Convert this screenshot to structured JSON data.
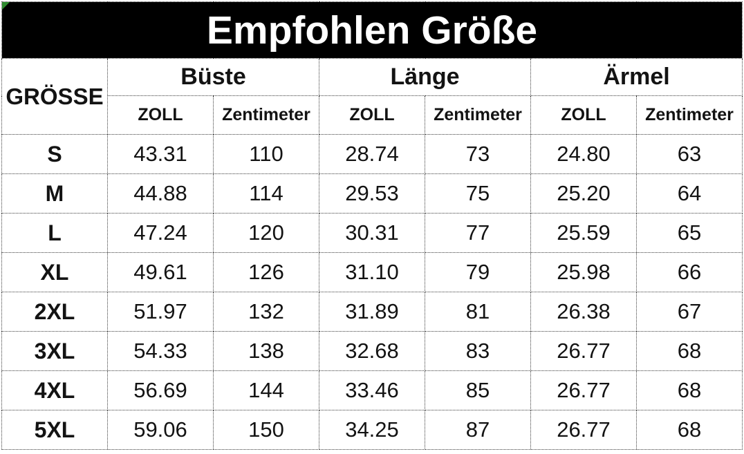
{
  "title": "Empfohlen Größe",
  "colors": {
    "title-bg": "#000000",
    "title-text": "#ffffff",
    "table-bg": "#ffffff",
    "text": "#131313",
    "border": "#3a3a3a",
    "corner-marker": "#2e8b2e"
  },
  "table": {
    "size_column_header": "GRÖSSE",
    "groups": [
      {
        "label": "Büste"
      },
      {
        "label": "Länge"
      },
      {
        "label": "Ärmel"
      }
    ],
    "unit_headers": [
      "ZOLL",
      "Zentimeter"
    ],
    "rows": [
      {
        "size": "S",
        "values": [
          "43.31",
          "110",
          "28.74",
          "73",
          "24.80",
          "63"
        ]
      },
      {
        "size": "M",
        "values": [
          "44.88",
          "114",
          "29.53",
          "75",
          "25.20",
          "64"
        ]
      },
      {
        "size": "L",
        "values": [
          "47.24",
          "120",
          "30.31",
          "77",
          "25.59",
          "65"
        ]
      },
      {
        "size": "XL",
        "values": [
          "49.61",
          "126",
          "31.10",
          "79",
          "25.98",
          "66"
        ]
      },
      {
        "size": "2XL",
        "values": [
          "51.97",
          "132",
          "31.89",
          "81",
          "26.38",
          "67"
        ]
      },
      {
        "size": "3XL",
        "values": [
          "54.33",
          "138",
          "32.68",
          "83",
          "26.77",
          "68"
        ]
      },
      {
        "size": "4XL",
        "values": [
          "56.69",
          "144",
          "33.46",
          "85",
          "26.77",
          "68"
        ]
      },
      {
        "size": "5XL",
        "values": [
          "59.06",
          "150",
          "34.25",
          "87",
          "26.77",
          "68"
        ]
      }
    ]
  }
}
